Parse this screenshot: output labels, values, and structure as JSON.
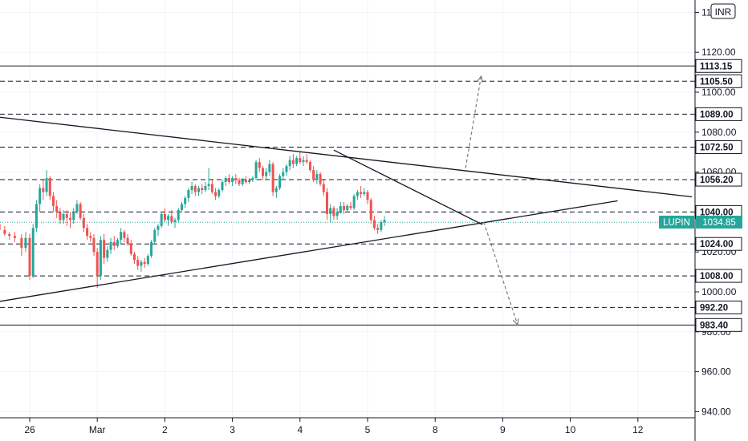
{
  "currency": "INR",
  "colors": {
    "up": "#26a69a",
    "down": "#ef5350",
    "grid": "#f0f3fa",
    "axis": "#131722",
    "dash": "#131722",
    "current": "#26a69a"
  },
  "chart_data": {
    "type": "candlestick",
    "symbol": "LUPIN",
    "current_price": 1034.85,
    "x_ticks": [
      "26",
      "Mar",
      "2",
      "3",
      "4",
      "5",
      "8",
      "9",
      "10",
      "12"
    ],
    "y_ticks": [
      940,
      960,
      980,
      1000,
      1020,
      1040,
      1060,
      1080,
      1100,
      1120,
      1140
    ],
    "ylim": [
      935,
      1142
    ],
    "levels": [
      {
        "value": 1113.15,
        "label": "1113.15",
        "style": "solid"
      },
      {
        "value": 1105.5,
        "label": "1105.50",
        "style": "dashed"
      },
      {
        "value": 1089.0,
        "label": "1089.00",
        "style": "dashed"
      },
      {
        "value": 1072.5,
        "label": "1072.50",
        "style": "dashed"
      },
      {
        "value": 1056.2,
        "label": "1056.20",
        "style": "dashed"
      },
      {
        "value": 1040.0,
        "label": "1040.00",
        "style": "dashed"
      },
      {
        "value": 1024.0,
        "label": "1024.00",
        "style": "dashed"
      },
      {
        "value": 1008.0,
        "label": "1008.00",
        "style": "dashed"
      },
      {
        "value": 992.2,
        "label": "992.20",
        "style": "dashed"
      },
      {
        "value": 983.4,
        "label": "983.40",
        "style": "solid"
      }
    ],
    "trendlines": [
      {
        "from": [
          -0.45,
          1087.5
        ],
        "to": [
          9.8,
          1047.6
        ]
      },
      {
        "from": [
          -0.45,
          995.2
        ],
        "to": [
          8.7,
          1045.6
        ]
      },
      {
        "from": [
          4.5,
          1071.0
        ],
        "to": [
          6.7,
          1033.7
        ]
      }
    ],
    "arrows": [
      {
        "from": [
          6.45,
          1062.0
        ],
        "to": [
          6.68,
          1108.0
        ]
      },
      {
        "from": [
          6.72,
          1035.0
        ],
        "to": [
          7.22,
          983.5
        ]
      }
    ],
    "candles": [
      [
        -0.45,
        1034,
        1036,
        1030,
        1031
      ],
      [
        -0.37,
        1031,
        1033,
        1028,
        1029
      ],
      [
        -0.3,
        1029,
        1030,
        1026,
        1028
      ],
      [
        -0.22,
        1028,
        1030,
        1025,
        1027
      ],
      [
        -0.12,
        1027,
        1029,
        1018,
        1022
      ],
      [
        -0.06,
        1022,
        1030,
        1020,
        1027
      ],
      [
        0.0,
        1027,
        1029,
        1006,
        1008
      ],
      [
        0.05,
        1008,
        1034,
        1007,
        1032
      ],
      [
        0.1,
        1032,
        1046,
        1030,
        1044
      ],
      [
        0.15,
        1044,
        1054,
        1040,
        1052
      ],
      [
        0.2,
        1052,
        1056,
        1046,
        1050
      ],
      [
        0.25,
        1050,
        1061,
        1048,
        1057
      ],
      [
        0.3,
        1057,
        1058,
        1046,
        1048
      ],
      [
        0.35,
        1048,
        1050,
        1040,
        1043
      ],
      [
        0.4,
        1043,
        1046,
        1037,
        1040
      ],
      [
        0.45,
        1040,
        1042,
        1034,
        1036
      ],
      [
        0.5,
        1036,
        1041,
        1034,
        1039
      ],
      [
        0.55,
        1039,
        1041,
        1033,
        1037
      ],
      [
        0.6,
        1037,
        1040,
        1032,
        1036
      ],
      [
        0.65,
        1036,
        1042,
        1034,
        1040
      ],
      [
        0.7,
        1040,
        1046,
        1039,
        1044
      ],
      [
        0.75,
        1044,
        1045,
        1036,
        1037
      ],
      [
        0.8,
        1037,
        1039,
        1030,
        1032
      ],
      [
        0.85,
        1032,
        1034,
        1026,
        1028
      ],
      [
        0.9,
        1028,
        1030,
        1025,
        1027
      ],
      [
        0.95,
        1027,
        1029,
        1018,
        1020
      ],
      [
        1.0,
        1020,
        1022,
        1002,
        1008
      ],
      [
        1.05,
        1008,
        1028,
        1006,
        1026
      ],
      [
        1.1,
        1026,
        1029,
        1014,
        1017
      ],
      [
        1.15,
        1017,
        1023,
        1015,
        1021
      ],
      [
        1.2,
        1021,
        1027,
        1019,
        1025
      ],
      [
        1.25,
        1025,
        1028,
        1021,
        1023
      ],
      [
        1.3,
        1023,
        1027,
        1022,
        1026
      ],
      [
        1.35,
        1026,
        1032,
        1024,
        1030
      ],
      [
        1.4,
        1030,
        1031,
        1025,
        1027
      ],
      [
        1.45,
        1027,
        1029,
        1023,
        1024
      ],
      [
        1.5,
        1024,
        1026,
        1018,
        1019
      ],
      [
        1.55,
        1019,
        1020,
        1014,
        1016
      ],
      [
        1.6,
        1016,
        1018,
        1011,
        1013
      ],
      [
        1.65,
        1013,
        1016,
        1010,
        1015
      ],
      [
        1.7,
        1015,
        1017,
        1012,
        1014
      ],
      [
        1.75,
        1014,
        1019,
        1013,
        1018
      ],
      [
        1.8,
        1018,
        1026,
        1017,
        1025
      ],
      [
        1.85,
        1025,
        1032,
        1024,
        1031
      ],
      [
        1.9,
        1031,
        1034,
        1028,
        1033
      ],
      [
        1.95,
        1033,
        1040,
        1032,
        1039
      ],
      [
        2.0,
        1039,
        1042,
        1035,
        1036
      ],
      [
        2.05,
        1036,
        1039,
        1033,
        1038
      ],
      [
        2.1,
        1038,
        1041,
        1034,
        1035
      ],
      [
        2.15,
        1035,
        1037,
        1032,
        1036
      ],
      [
        2.2,
        1036,
        1042,
        1035,
        1041
      ],
      [
        2.25,
        1041,
        1045,
        1040,
        1044
      ],
      [
        2.3,
        1044,
        1048,
        1042,
        1047
      ],
      [
        2.35,
        1047,
        1052,
        1045,
        1051
      ],
      [
        2.4,
        1051,
        1055,
        1049,
        1053
      ],
      [
        2.45,
        1053,
        1054,
        1048,
        1050
      ],
      [
        2.5,
        1050,
        1053,
        1048,
        1052
      ],
      [
        2.55,
        1052,
        1054,
        1049,
        1051
      ],
      [
        2.6,
        1051,
        1055,
        1050,
        1053
      ],
      [
        2.65,
        1053,
        1062,
        1051,
        1054
      ],
      [
        2.7,
        1054,
        1056,
        1049,
        1050
      ],
      [
        2.75,
        1050,
        1052,
        1046,
        1048
      ],
      [
        2.8,
        1048,
        1052,
        1047,
        1051
      ],
      [
        2.85,
        1051,
        1056,
        1050,
        1055
      ],
      [
        2.9,
        1055,
        1058,
        1053,
        1057
      ],
      [
        2.95,
        1057,
        1059,
        1054,
        1055
      ],
      [
        3.0,
        1055,
        1058,
        1053,
        1057
      ],
      [
        3.05,
        1057,
        1059,
        1054,
        1056
      ],
      [
        3.1,
        1056,
        1057,
        1053,
        1054
      ],
      [
        3.15,
        1054,
        1057,
        1053,
        1056
      ],
      [
        3.2,
        1056,
        1058,
        1054,
        1055
      ],
      [
        3.25,
        1055,
        1057,
        1054,
        1056
      ],
      [
        3.3,
        1056,
        1058,
        1055,
        1057
      ],
      [
        3.35,
        1057,
        1066,
        1056,
        1065
      ],
      [
        3.4,
        1065,
        1067,
        1060,
        1062
      ],
      [
        3.45,
        1062,
        1063,
        1056,
        1058
      ],
      [
        3.5,
        1058,
        1062,
        1056,
        1060
      ],
      [
        3.55,
        1060,
        1066,
        1058,
        1064
      ],
      [
        3.6,
        1064,
        1065,
        1048,
        1050
      ],
      [
        3.65,
        1050,
        1053,
        1047,
        1052
      ],
      [
        3.7,
        1052,
        1059,
        1051,
        1058
      ],
      [
        3.75,
        1058,
        1062,
        1056,
        1060
      ],
      [
        3.8,
        1060,
        1064,
        1058,
        1063
      ],
      [
        3.85,
        1063,
        1068,
        1061,
        1066
      ],
      [
        3.9,
        1066,
        1069,
        1062,
        1064
      ],
      [
        3.95,
        1064,
        1068,
        1063,
        1067
      ],
      [
        4.0,
        1067,
        1070,
        1064,
        1065
      ],
      [
        4.05,
        1065,
        1068,
        1063,
        1066
      ],
      [
        4.1,
        1066,
        1069,
        1064,
        1065
      ],
      [
        4.15,
        1065,
        1066,
        1060,
        1061
      ],
      [
        4.2,
        1061,
        1063,
        1055,
        1056
      ],
      [
        4.25,
        1056,
        1061,
        1054,
        1059
      ],
      [
        4.3,
        1059,
        1060,
        1053,
        1054
      ],
      [
        4.35,
        1054,
        1056,
        1048,
        1050
      ],
      [
        4.4,
        1050,
        1052,
        1036,
        1039
      ],
      [
        4.45,
        1039,
        1044,
        1035,
        1042
      ],
      [
        4.5,
        1042,
        1043,
        1036,
        1038
      ],
      [
        4.55,
        1038,
        1042,
        1036,
        1040
      ],
      [
        4.6,
        1040,
        1045,
        1039,
        1043
      ],
      [
        4.65,
        1043,
        1045,
        1039,
        1041
      ],
      [
        4.7,
        1041,
        1044,
        1040,
        1043
      ],
      [
        4.75,
        1043,
        1045,
        1041,
        1042
      ],
      [
        4.8,
        1042,
        1049,
        1041,
        1048
      ],
      [
        4.85,
        1048,
        1051,
        1046,
        1050
      ],
      [
        4.9,
        1050,
        1053,
        1047,
        1049
      ],
      [
        4.95,
        1049,
        1052,
        1048,
        1050
      ],
      [
        5.0,
        1050,
        1051,
        1044,
        1046
      ],
      [
        5.05,
        1046,
        1047,
        1034,
        1036
      ],
      [
        5.1,
        1036,
        1038,
        1031,
        1032
      ],
      [
        5.15,
        1032,
        1034,
        1029,
        1031
      ],
      [
        5.2,
        1031,
        1036,
        1030,
        1035
      ],
      [
        5.25,
        1035,
        1038,
        1033,
        1036
      ]
    ]
  }
}
